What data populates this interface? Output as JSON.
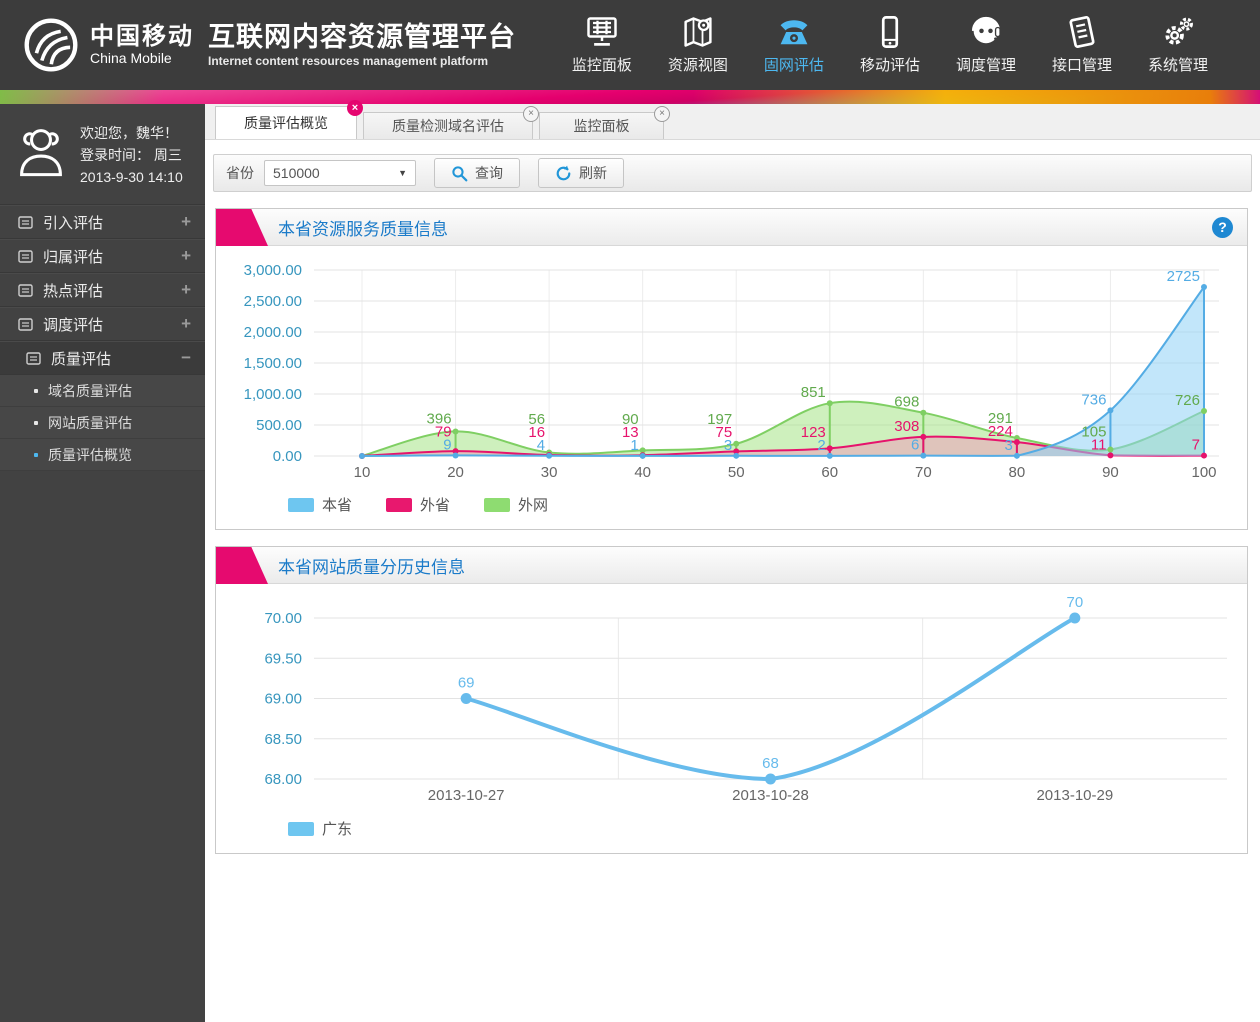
{
  "header": {
    "logo_cn": "中国移动",
    "logo_en": "China Mobile",
    "title": "互联网内容资源管理平台",
    "subtitle": "Internet content resources management platform",
    "nav": [
      {
        "label": "监控面板",
        "icon": "dashboard-icon",
        "active": false
      },
      {
        "label": "资源视图",
        "icon": "map-icon",
        "active": false
      },
      {
        "label": "固网评估",
        "icon": "phone-icon",
        "active": true
      },
      {
        "label": "移动评估",
        "icon": "mobile-icon",
        "active": false
      },
      {
        "label": "调度管理",
        "icon": "headset-icon",
        "active": false
      },
      {
        "label": "接口管理",
        "icon": "interface-doc-icon",
        "active": false
      },
      {
        "label": "系统管理",
        "icon": "gears-icon",
        "active": false
      }
    ]
  },
  "sidebar": {
    "welcome": "欢迎您，魏华！",
    "login_line1": "登录时间：  周三",
    "login_line2": "2013-9-30   14:10",
    "menu": [
      {
        "label": "引入评估",
        "toggle": "+",
        "open": false
      },
      {
        "label": "归属评估",
        "toggle": "+",
        "open": false
      },
      {
        "label": "热点评估",
        "toggle": "+",
        "open": false
      },
      {
        "label": "调度评估",
        "toggle": "+",
        "open": false
      },
      {
        "label": "质量评估",
        "toggle": "−",
        "open": true,
        "children": [
          {
            "label": "域名质量评估",
            "active": false
          },
          {
            "label": "网站质量评估",
            "active": false
          },
          {
            "label": "质量评估概览",
            "active": true
          }
        ]
      }
    ]
  },
  "tabs": [
    {
      "label": "质量评估概览",
      "active": true,
      "close": "×"
    },
    {
      "label": "质量检测域名评估",
      "active": false,
      "close": "×"
    },
    {
      "label": "监控面板",
      "active": false,
      "close": "×"
    }
  ],
  "filter": {
    "province_label": "省份",
    "province_value": "510000",
    "caret_icon": "▼",
    "search_label": "查询",
    "refresh_label": "刷新"
  },
  "panels": [
    {
      "title": "本省资源服务质量信息",
      "help": "?"
    },
    {
      "title": "本省网站质量分历史信息"
    }
  ],
  "chart_data": [
    {
      "type": "area",
      "title": "本省资源服务质量信息",
      "categories": [
        "10",
        "20",
        "30",
        "40",
        "50",
        "60",
        "70",
        "80",
        "90",
        "100"
      ],
      "series": [
        {
          "name": "外网",
          "color": "#7fcf63",
          "label_color": "#61aa4d",
          "fill": "rgba(158,226,124,0.5)",
          "swatch": "#8edc71",
          "values": [
            0,
            396,
            56,
            90,
            197,
            851,
            698,
            291,
            105,
            726
          ]
        },
        {
          "name": "外省",
          "color": "#e6136c",
          "label_color": "#e6136c",
          "fill": "rgba(244,143,183,0.45)",
          "swatch": "#e8186e",
          "values": [
            0,
            79,
            16,
            13,
            75,
            123,
            308,
            224,
            11,
            7
          ]
        },
        {
          "name": "本省",
          "color": "#54ace4",
          "label_color": "#54ace4",
          "fill": "rgba(143,210,245,0.55)",
          "swatch": "#6ec6f0",
          "values": [
            0,
            9,
            4,
            1,
            3,
            2,
            6,
            3,
            736,
            2725
          ]
        }
      ],
      "legend_order": [
        "本省",
        "外省",
        "外网"
      ],
      "ylim": [
        0,
        3000
      ],
      "ytick_step": 500,
      "ytick_labels": [
        "0.00",
        "500.00",
        "1,000.00",
        "1,500.00",
        "2,000.00",
        "2,500.00",
        "3,000.00"
      ],
      "xlabel": "",
      "ylabel": "",
      "grid": true,
      "legend_position": "bottom-left"
    },
    {
      "type": "line",
      "title": "本省网站质量分历史信息",
      "categories": [
        "2013-10-27",
        "2013-10-28",
        "2013-10-29"
      ],
      "series": [
        {
          "name": "广东",
          "color": "#67bbec",
          "label_color": "#67bbec",
          "swatch": "#6ec6f0",
          "values": [
            69,
            68,
            70
          ]
        }
      ],
      "legend_order": [
        "广东"
      ],
      "ylim": [
        68,
        70
      ],
      "ytick_step": 0.5,
      "ytick_labels": [
        "68.00",
        "68.50",
        "69.00",
        "69.50",
        "70.00"
      ],
      "xlabel": "",
      "ylabel": "",
      "grid": true,
      "legend_position": "bottom-left"
    }
  ]
}
